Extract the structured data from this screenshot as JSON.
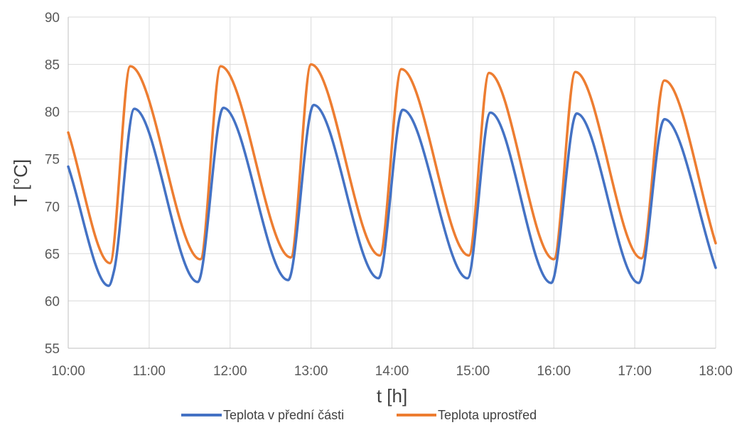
{
  "chart_data": {
    "type": "line",
    "title": "",
    "xlabel": "t [h]",
    "ylabel": "T [°C]",
    "xlim": [
      "10:00",
      "18:00"
    ],
    "ylim": [
      55,
      90
    ],
    "x_ticks": [
      "10:00",
      "11:00",
      "12:00",
      "13:00",
      "14:00",
      "15:00",
      "16:00",
      "17:00",
      "18:00"
    ],
    "y_ticks": [
      55,
      60,
      65,
      70,
      75,
      80,
      85,
      90
    ],
    "grid": true,
    "legend_position": "bottom",
    "series": [
      {
        "name": "Teplota v přední části",
        "color": "#4472c4",
        "x": [
          "10:00",
          "10:30",
          "10:34",
          "10:49",
          "11:36",
          "11:55",
          "12:43",
          "13:02",
          "13:50",
          "14:08",
          "14:56",
          "15:13",
          "15:58",
          "16:17",
          "17:03",
          "17:22",
          "18:00"
        ],
        "y": [
          74.2,
          61.6,
          63.2,
          80.3,
          62.0,
          80.4,
          62.2,
          80.7,
          62.4,
          80.2,
          62.4,
          79.9,
          61.9,
          79.8,
          61.9,
          79.2,
          63.5
        ]
      },
      {
        "name": "Teplota uprostřed",
        "color": "#ed7d31",
        "x": [
          "10:00",
          "10:31",
          "10:46",
          "11:38",
          "11:53",
          "12:45",
          "13:00",
          "13:51",
          "14:07",
          "14:57",
          "15:12",
          "16:00",
          "16:16",
          "17:05",
          "17:22",
          "18:00"
        ],
        "y": [
          77.8,
          64.0,
          84.8,
          64.4,
          84.8,
          64.6,
          85.0,
          64.8,
          84.5,
          64.8,
          84.1,
          64.4,
          84.2,
          64.5,
          83.3,
          66.1
        ]
      }
    ]
  }
}
